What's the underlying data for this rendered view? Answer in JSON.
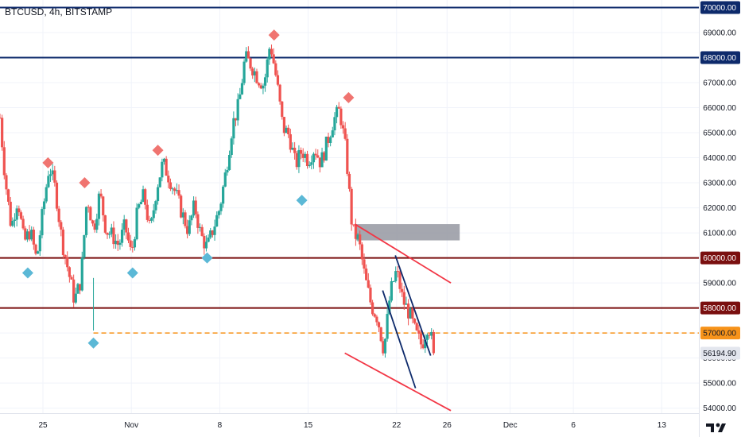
{
  "header": {
    "title": "BTCUSD, 4h, BITSTAMP"
  },
  "colors": {
    "up": "#26a69a",
    "down": "#ef5350",
    "navy": "#0d2a6b",
    "maroon": "#7a0f0f",
    "orange": "#f7931a",
    "red": "#f23645",
    "diamond_red": "#f07470",
    "diamond_blue": "#5bb8d6",
    "zone": "#9598a1",
    "grid": "#f0f3fa",
    "price_badge": "#e3e6ee"
  },
  "chart_data": {
    "type": "candlestick",
    "symbol": "BTCUSD",
    "interval": "4h",
    "exchange": "BITSTAMP",
    "title": "BTCUSD, 4h, BITSTAMP",
    "y_range": [
      53800,
      70300
    ],
    "y_ticks": [
      54000,
      55000,
      56000,
      57000,
      58000,
      59000,
      60000,
      61000,
      62000,
      63000,
      64000,
      65000,
      66000,
      67000,
      68000,
      69000,
      70000
    ],
    "x_ticks": [
      {
        "label": "25",
        "day": 25
      },
      {
        "label": "Nov",
        "day": 32
      },
      {
        "label": "8",
        "day": 39
      },
      {
        "label": "15",
        "day": 46
      },
      {
        "label": "22",
        "day": 53
      },
      {
        "label": "26",
        "day": 57
      },
      {
        "label": "Dec",
        "day": 62
      },
      {
        "label": "6",
        "day": 67
      },
      {
        "label": "13",
        "day": 74
      }
    ],
    "x_range_days": [
      21.6,
      77
    ],
    "price_path": [
      [
        21.6,
        65600
      ],
      [
        22.0,
        63200
      ],
      [
        22.5,
        61200
      ],
      [
        23.0,
        62400
      ],
      [
        23.5,
        60600
      ],
      [
        24.0,
        61100
      ],
      [
        24.5,
        59900
      ],
      [
        25.0,
        61900
      ],
      [
        25.5,
        63700
      ],
      [
        26.0,
        62700
      ],
      [
        26.5,
        60700
      ],
      [
        27.0,
        59500
      ],
      [
        27.5,
        58300
      ],
      [
        28.0,
        59100
      ],
      [
        28.5,
        62500
      ],
      [
        29.0,
        61100
      ],
      [
        29.5,
        62600
      ],
      [
        30.0,
        61100
      ],
      [
        30.5,
        60900
      ],
      [
        31.0,
        60500
      ],
      [
        31.5,
        61300
      ],
      [
        32.0,
        60100
      ],
      [
        32.5,
        61900
      ],
      [
        33.0,
        62500
      ],
      [
        33.5,
        61000
      ],
      [
        34.0,
        62800
      ],
      [
        34.5,
        63800
      ],
      [
        35.0,
        63200
      ],
      [
        35.5,
        62600
      ],
      [
        36.0,
        61800
      ],
      [
        36.5,
        61100
      ],
      [
        37.0,
        62100
      ],
      [
        37.5,
        60900
      ],
      [
        38.0,
        60400
      ],
      [
        38.5,
        61200
      ],
      [
        39.0,
        62000
      ],
      [
        39.5,
        63500
      ],
      [
        40.0,
        65300
      ],
      [
        40.5,
        66100
      ],
      [
        41.0,
        68000
      ],
      [
        41.5,
        67700
      ],
      [
        42.0,
        67200
      ],
      [
        42.5,
        66900
      ],
      [
        43.0,
        68600
      ],
      [
        43.5,
        67100
      ],
      [
        44.0,
        65200
      ],
      [
        44.5,
        64900
      ],
      [
        45.0,
        63700
      ],
      [
        45.5,
        64300
      ],
      [
        46.0,
        63900
      ],
      [
        46.5,
        64400
      ],
      [
        47.0,
        63800
      ],
      [
        47.5,
        64600
      ],
      [
        48.0,
        65500
      ],
      [
        48.5,
        65900
      ],
      [
        49.0,
        64200
      ],
      [
        49.5,
        61100
      ],
      [
        50.0,
        60700
      ],
      [
        50.5,
        59200
      ],
      [
        51.0,
        58100
      ],
      [
        51.5,
        57600
      ],
      [
        52.0,
        56300
      ],
      [
        52.5,
        58600
      ],
      [
        53.0,
        59500
      ],
      [
        53.5,
        58300
      ],
      [
        54.0,
        57800
      ],
      [
        54.5,
        57000
      ],
      [
        55.0,
        56500
      ],
      [
        55.5,
        57400
      ],
      [
        56.0,
        56194.9
      ]
    ],
    "last_price": "56194.90",
    "horizontal_levels": [
      {
        "price": 70000,
        "label": "70000.00",
        "style": "navy"
      },
      {
        "price": 68000,
        "label": "68000.00",
        "style": "navy"
      },
      {
        "price": 60000,
        "label": "60000.00",
        "style": "maroon"
      },
      {
        "price": 58000,
        "label": "58000.00",
        "style": "maroon"
      },
      {
        "price": 57000,
        "label": "57000.00",
        "style": "orange-dashed"
      }
    ],
    "zone": {
      "day_start": 49.8,
      "day_end": 58.0,
      "price_low": 60700,
      "price_high": 61350
    },
    "trendlines": [
      {
        "color": "red",
        "from": [
          49.7,
          61350
        ],
        "to": [
          57.3,
          59000
        ]
      },
      {
        "color": "red",
        "from": [
          48.9,
          56200
        ],
        "to": [
          57.3,
          53900
        ]
      },
      {
        "color": "navy",
        "from": [
          52.9,
          60100
        ],
        "to": [
          55.7,
          56100
        ]
      },
      {
        "color": "navy",
        "from": [
          51.9,
          58700
        ],
        "to": [
          54.5,
          54800
        ]
      }
    ],
    "markers": {
      "high": [
        [
          25.4,
          63800
        ],
        [
          28.3,
          63000
        ],
        [
          34.1,
          64300
        ],
        [
          43.3,
          68900
        ],
        [
          49.2,
          66400
        ]
      ],
      "low": [
        [
          23.8,
          59400
        ],
        [
          29.0,
          56600
        ],
        [
          32.1,
          59400
        ],
        [
          38.0,
          60000
        ],
        [
          45.5,
          62300
        ]
      ]
    },
    "wick_low": {
      "day": 29.0,
      "price": 57100
    }
  }
}
